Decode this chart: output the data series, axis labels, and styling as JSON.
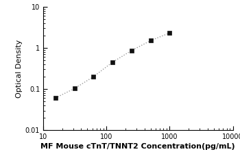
{
  "x": [
    15.625,
    31.25,
    62.5,
    125,
    250,
    500,
    1000
  ],
  "y": [
    0.061,
    0.103,
    0.2,
    0.45,
    0.86,
    1.5,
    2.3
  ],
  "xlim": [
    10,
    10000
  ],
  "ylim": [
    0.01,
    10
  ],
  "xlabel": "MF Mouse cTnT/TNNT2 Concentration(pg/mL)",
  "ylabel": "Optical Density",
  "line_color": "#999999",
  "marker_color": "#111111",
  "marker": "s",
  "marker_size": 4,
  "line_style": ":",
  "line_width": 1.0,
  "xlabel_fontsize": 8,
  "ylabel_fontsize": 8,
  "tick_fontsize": 7,
  "bg_color": "#ffffff"
}
